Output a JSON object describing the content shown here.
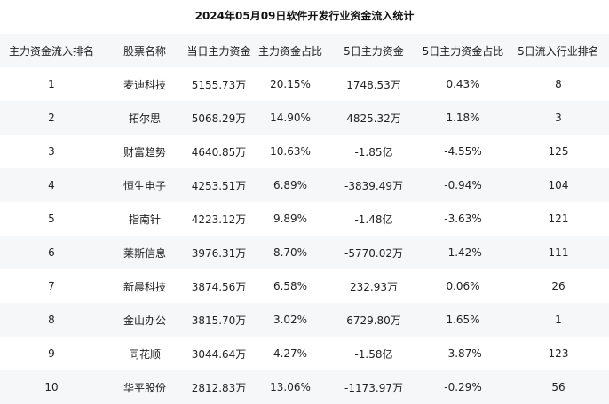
{
  "title": "2024年05月09日软件开发行业资金流入统计",
  "headers": [
    "主力资金流入排名",
    "股票名称",
    "当日主力资金",
    "主力资金占比",
    "5日主力资金",
    "5日主力资金占比",
    "5日流入行业排名"
  ],
  "rows": [
    [
      "1",
      "麦迪科技",
      "5155.73万",
      "20.15%",
      "1748.53万",
      "0.43%",
      "8"
    ],
    [
      "2",
      "拓尔思",
      "5068.29万",
      "14.90%",
      "4825.32万",
      "1.18%",
      "3"
    ],
    [
      "3",
      "财富趋势",
      "4640.85万",
      "10.63%",
      "-1.85亿",
      "-4.55%",
      "125"
    ],
    [
      "4",
      "恒生电子",
      "4253.51万",
      "6.89%",
      "-3839.49万",
      "-0.94%",
      "104"
    ],
    [
      "5",
      "指南针",
      "4223.12万",
      "9.89%",
      "-1.48亿",
      "-3.63%",
      "121"
    ],
    [
      "6",
      "莱斯信息",
      "3976.31万",
      "8.70%",
      "-5770.02万",
      "-1.42%",
      "111"
    ],
    [
      "7",
      "新晨科技",
      "3874.56万",
      "6.58%",
      "232.93万",
      "0.06%",
      "26"
    ],
    [
      "8",
      "金山办公",
      "3815.70万",
      "3.02%",
      "6729.80万",
      "1.65%",
      "1"
    ],
    [
      "9",
      "同花顺",
      "3044.64万",
      "4.27%",
      "-1.58亿",
      "-3.87%",
      "123"
    ],
    [
      "10",
      "华平股份",
      "2812.83万",
      "13.06%",
      "-1173.97万",
      "-0.29%",
      "56"
    ]
  ]
}
